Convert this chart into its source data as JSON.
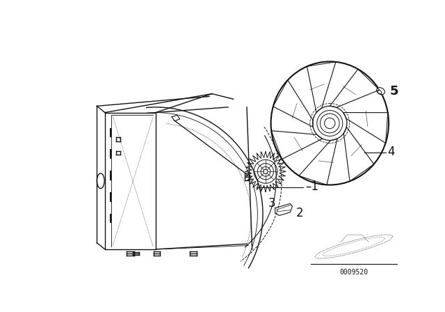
{
  "background_color": "#ffffff",
  "line_color": "#111111",
  "diagram_code": "0009520",
  "fig_width": 6.4,
  "fig_height": 4.48,
  "dpi": 100
}
